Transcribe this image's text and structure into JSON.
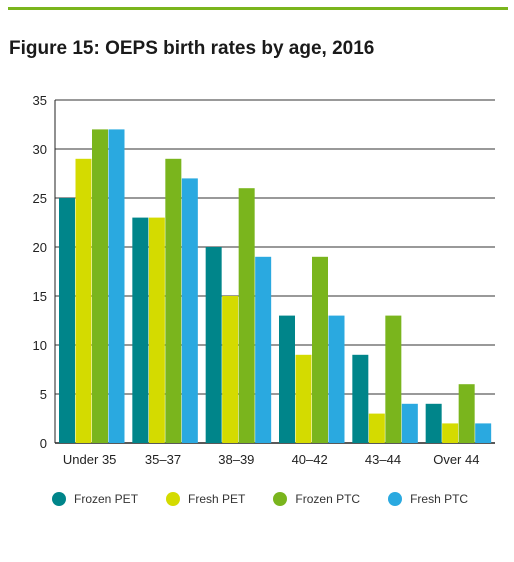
{
  "chart_data": {
    "type": "bar",
    "title": "Figure 15: OEPS birth rates by age, 2016",
    "categories": [
      "Under 35",
      "35–37",
      "38–39",
      "40–42",
      "43–44",
      "Over 44"
    ],
    "series": [
      {
        "name": "Frozen PET",
        "color": "#00858a",
        "values": [
          25,
          23,
          20,
          13,
          9,
          4
        ]
      },
      {
        "name": "Fresh PET",
        "color": "#d4db00",
        "values": [
          29,
          23,
          15,
          9,
          3,
          2
        ]
      },
      {
        "name": "Frozen PTC",
        "color": "#7ab51d",
        "values": [
          32,
          29,
          26,
          19,
          13,
          6
        ]
      },
      {
        "name": "Fresh PTC",
        "color": "#2aa9e0",
        "values": [
          32,
          27,
          19,
          13,
          4,
          2
        ]
      }
    ],
    "ylim": [
      0,
      35
    ],
    "yticks": [
      "0",
      "5",
      "10",
      "15",
      "20",
      "25",
      "30",
      "35"
    ],
    "grid": true,
    "legend_position": "bottom"
  }
}
